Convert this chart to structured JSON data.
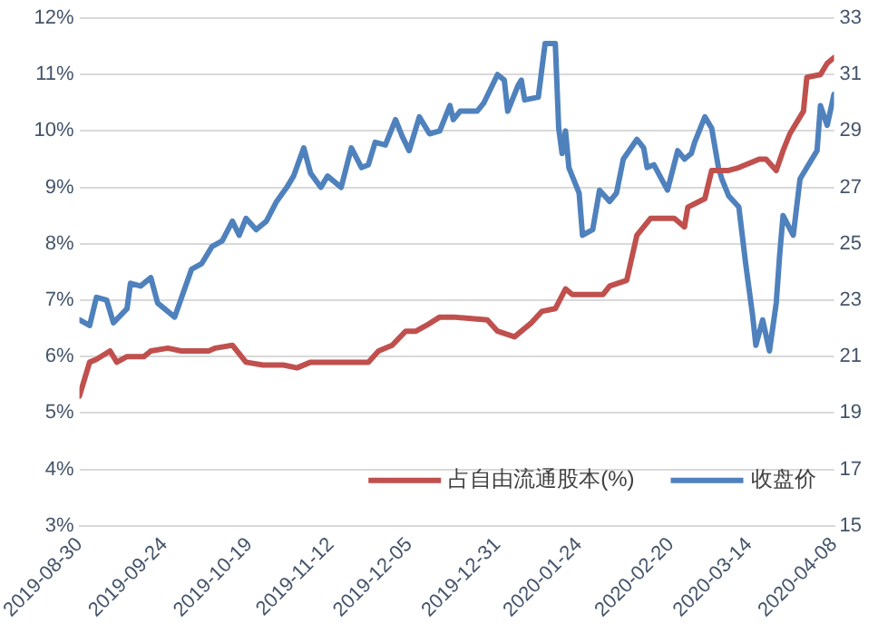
{
  "chart_data": {
    "type": "line",
    "xlim": [
      "2019-08-30",
      "2020-04-08"
    ],
    "xticks": [
      "2019-08-30",
      "2019-09-24",
      "2019-10-19",
      "2019-11-12",
      "2019-12-05",
      "2019-12-31",
      "2020-01-24",
      "2020-02-20",
      "2020-03-14",
      "2020-04-08"
    ],
    "ylim": [
      3,
      12
    ],
    "yticks": [
      {
        "value": 3,
        "label": "3%"
      },
      {
        "value": 4,
        "label": "4%"
      },
      {
        "value": 5,
        "label": "5%"
      },
      {
        "value": 6,
        "label": "6%"
      },
      {
        "value": 7,
        "label": "7%"
      },
      {
        "value": 8,
        "label": "8%"
      },
      {
        "value": 9,
        "label": "9%"
      },
      {
        "value": 10,
        "label": "10%"
      },
      {
        "value": 11,
        "label": "11%"
      },
      {
        "value": 12,
        "label": "12%"
      }
    ],
    "y2lim": [
      15,
      33
    ],
    "y2ticks": [
      15,
      17,
      19,
      21,
      23,
      25,
      27,
      29,
      31,
      33
    ],
    "grid": "y",
    "legend": "bottom right",
    "marker": "none",
    "line_style": "solid",
    "series": [
      {
        "name": "占自由流通股本(%)",
        "color": "#c0504d",
        "x": [
          "2019-08-30",
          "2019-09-02",
          "2019-09-04",
          "2019-09-08",
          "2019-09-10",
          "2019-09-13",
          "2019-09-18",
          "2019-09-20",
          "2019-09-25",
          "2019-09-29",
          "2019-10-07",
          "2019-10-09",
          "2019-10-14",
          "2019-10-18",
          "2019-10-23",
          "2019-10-29",
          "2019-11-02",
          "2019-11-06",
          "2019-11-12",
          "2019-11-16",
          "2019-11-23",
          "2019-11-26",
          "2019-11-30",
          "2019-12-04",
          "2019-12-07",
          "2019-12-10",
          "2019-12-14",
          "2019-12-18",
          "2019-12-28",
          "2019-12-31",
          "2020-01-05",
          "2020-01-10",
          "2020-01-13",
          "2020-01-17",
          "2020-01-20",
          "2020-01-22",
          "2020-01-31",
          "2020-02-02",
          "2020-02-07",
          "2020-02-10",
          "2020-02-14",
          "2020-02-21",
          "2020-02-24",
          "2020-02-25",
          "2020-03-01",
          "2020-03-03",
          "2020-03-08",
          "2020-03-11",
          "2020-03-17",
          "2020-03-19",
          "2020-03-22",
          "2020-03-24",
          "2020-03-26",
          "2020-03-30",
          "2020-03-31",
          "2020-04-04",
          "2020-04-06",
          "2020-04-08"
        ],
        "values": [
          5.3,
          5.9,
          5.95,
          6.1,
          5.9,
          6.0,
          6.0,
          6.1,
          6.15,
          6.1,
          6.1,
          6.15,
          6.2,
          5.9,
          5.85,
          5.85,
          5.8,
          5.9,
          5.9,
          5.9,
          5.9,
          6.1,
          6.2,
          6.45,
          6.45,
          6.55,
          6.7,
          6.7,
          6.65,
          6.45,
          6.35,
          6.6,
          6.8,
          6.85,
          7.2,
          7.1,
          7.1,
          7.25,
          7.35,
          8.15,
          8.45,
          8.45,
          8.3,
          8.65,
          8.8,
          9.3,
          9.3,
          9.35,
          9.5,
          9.5,
          9.3,
          9.65,
          9.95,
          10.35,
          10.95,
          11.0,
          11.2,
          11.3
        ]
      },
      {
        "name": "收盘价",
        "color": "#4f81bd",
        "axis": "y2",
        "x": [
          "2019-08-30",
          "2019-09-02",
          "2019-09-04",
          "2019-09-07",
          "2019-09-09",
          "2019-09-13",
          "2019-09-14",
          "2019-09-17",
          "2019-09-20",
          "2019-09-22",
          "2019-09-27",
          "2019-10-02",
          "2019-10-05",
          "2019-10-08",
          "2019-10-11",
          "2019-10-14",
          "2019-10-16",
          "2019-10-18",
          "2019-10-21",
          "2019-10-24",
          "2019-10-27",
          "2019-10-30",
          "2019-11-01",
          "2019-11-04",
          "2019-11-06",
          "2019-11-09",
          "2019-11-11",
          "2019-11-15",
          "2019-11-18",
          "2019-11-21",
          "2019-11-23",
          "2019-11-25",
          "2019-11-28",
          "2019-12-01",
          "2019-12-03",
          "2019-12-05",
          "2019-12-08",
          "2019-12-11",
          "2019-12-14",
          "2019-12-17",
          "2019-12-18",
          "2019-12-20",
          "2019-12-25",
          "2019-12-27",
          "2019-12-31",
          "2020-01-02",
          "2020-01-03",
          "2020-01-06",
          "2020-01-07",
          "2020-01-08",
          "2020-01-12",
          "2020-01-14",
          "2020-01-17",
          "2020-01-18",
          "2020-01-19",
          "2020-01-20",
          "2020-01-21",
          "2020-01-24",
          "2020-01-25",
          "2020-01-28",
          "2020-01-30",
          "2020-02-02",
          "2020-02-04",
          "2020-02-06",
          "2020-02-10",
          "2020-02-12",
          "2020-02-13",
          "2020-02-15",
          "2020-02-19",
          "2020-02-22",
          "2020-02-24",
          "2020-02-26",
          "2020-02-27",
          "2020-03-01",
          "2020-03-03",
          "2020-03-05",
          "2020-03-06",
          "2020-03-08",
          "2020-03-11",
          "2020-03-13",
          "2020-03-15",
          "2020-03-16",
          "2020-03-18",
          "2020-03-20",
          "2020-03-22",
          "2020-03-23",
          "2020-03-24",
          "2020-03-27",
          "2020-03-29",
          "2020-03-31",
          "2020-04-03",
          "2020-04-04",
          "2020-04-06",
          "2020-04-08"
        ],
        "values": [
          22.3,
          22.1,
          23.1,
          23.0,
          22.2,
          22.7,
          23.6,
          23.5,
          23.8,
          22.9,
          22.4,
          24.1,
          24.3,
          24.9,
          25.1,
          25.8,
          25.3,
          25.9,
          25.5,
          25.8,
          26.5,
          27.0,
          27.4,
          28.4,
          27.5,
          27.0,
          27.4,
          27.0,
          28.4,
          27.7,
          27.8,
          28.6,
          28.5,
          29.4,
          28.8,
          28.3,
          29.5,
          28.9,
          29.0,
          29.9,
          29.4,
          29.7,
          29.7,
          30.0,
          31.0,
          30.8,
          29.7,
          30.6,
          30.8,
          30.1,
          30.2,
          32.1,
          32.1,
          29.1,
          28.2,
          29.0,
          27.7,
          26.8,
          25.3,
          25.5,
          26.9,
          26.5,
          26.8,
          28.0,
          28.7,
          28.4,
          27.7,
          27.8,
          26.9,
          28.3,
          28.0,
          28.2,
          28.6,
          29.5,
          29.1,
          27.7,
          27.3,
          26.7,
          26.3,
          24.3,
          22.5,
          21.4,
          22.3,
          21.2,
          22.9,
          24.6,
          26.0,
          25.3,
          27.3,
          27.7,
          28.3,
          29.9,
          29.2,
          30.3
        ]
      }
    ]
  }
}
